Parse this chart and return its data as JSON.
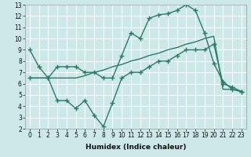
{
  "xlabel": "Humidex (Indice chaleur)",
  "ylabel": "",
  "bg_color": "#cce8e8",
  "grid_color": "#ffffff",
  "line_color": "#2d7a6a",
  "xlim": [
    -0.5,
    23.5
  ],
  "ylim": [
    2,
    13
  ],
  "xticks": [
    0,
    1,
    2,
    3,
    4,
    5,
    6,
    7,
    8,
    9,
    10,
    11,
    12,
    13,
    14,
    15,
    16,
    17,
    18,
    19,
    20,
    21,
    22,
    23
  ],
  "yticks": [
    2,
    3,
    4,
    5,
    6,
    7,
    8,
    9,
    10,
    11,
    12,
    13
  ],
  "line1_x": [
    0,
    1,
    2,
    3,
    4,
    5,
    6,
    7,
    8,
    9,
    10,
    11,
    12,
    13,
    14,
    15,
    16,
    17,
    18,
    19,
    20,
    21,
    22,
    23
  ],
  "line1_y": [
    9.0,
    7.5,
    6.5,
    7.5,
    7.5,
    7.5,
    7.0,
    7.0,
    6.5,
    6.5,
    8.5,
    10.5,
    10.0,
    11.8,
    12.1,
    12.2,
    12.5,
    13.0,
    12.5,
    10.5,
    7.8,
    6.2,
    5.5,
    5.3
  ],
  "line2_x": [
    0,
    2,
    3,
    4,
    5,
    6,
    7,
    8,
    9,
    10,
    11,
    12,
    13,
    14,
    15,
    16,
    17,
    18,
    19,
    20,
    21,
    22,
    23
  ],
  "line2_y": [
    6.5,
    6.5,
    4.5,
    4.5,
    3.8,
    4.5,
    3.2,
    2.2,
    4.3,
    6.5,
    7.0,
    7.0,
    7.5,
    8.0,
    8.0,
    8.5,
    9.0,
    9.0,
    9.0,
    9.5,
    6.0,
    5.7,
    5.3
  ],
  "line3_x": [
    0,
    1,
    2,
    3,
    4,
    5,
    6,
    7,
    8,
    9,
    10,
    11,
    12,
    13,
    14,
    15,
    16,
    17,
    18,
    19,
    20,
    21,
    22,
    23
  ],
  "line3_y": [
    6.5,
    6.5,
    6.5,
    6.5,
    6.5,
    6.5,
    6.7,
    7.0,
    7.2,
    7.5,
    7.7,
    8.0,
    8.2,
    8.5,
    8.7,
    9.0,
    9.2,
    9.5,
    9.7,
    10.0,
    10.2,
    5.5,
    5.5,
    5.3
  ],
  "marker_size": 4,
  "linewidth": 1.0
}
